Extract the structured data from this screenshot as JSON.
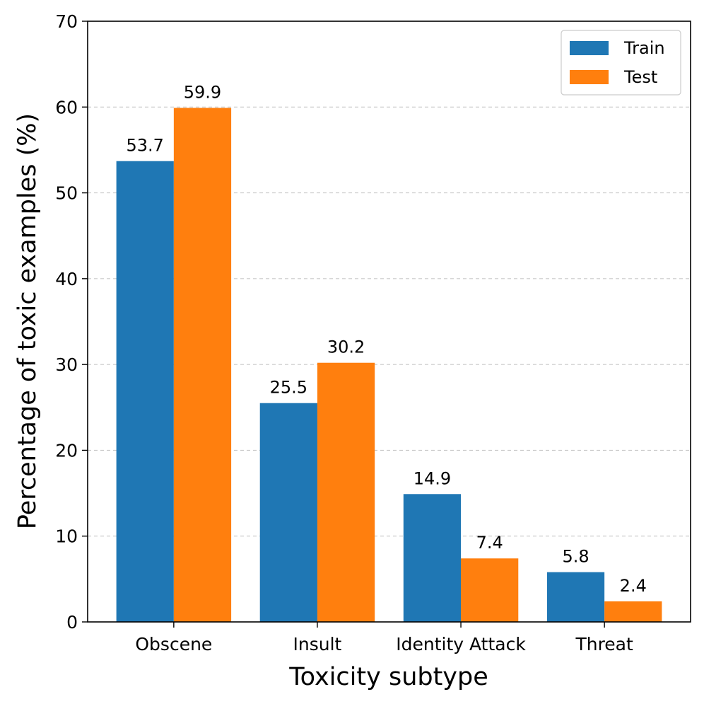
{
  "chart_data": {
    "type": "bar",
    "title": "",
    "xlabel": "Toxicity subtype",
    "ylabel": "Percentage of toxic examples (%)",
    "categories": [
      "Obscene",
      "Insult",
      "Identity Attack",
      "Threat"
    ],
    "series": [
      {
        "name": "Train",
        "values": [
          53.7,
          25.5,
          14.9,
          5.8
        ],
        "value_labels": [
          "53.7",
          "25.5",
          "14.9",
          "5.8"
        ],
        "color": "#1f77b4"
      },
      {
        "name": "Test",
        "values": [
          59.9,
          30.2,
          7.4,
          2.4
        ],
        "value_labels": [
          "59.9",
          "30.2",
          "7.4",
          "2.4"
        ],
        "color": "#ff7f0e"
      }
    ],
    "ylim": [
      0,
      70
    ],
    "yticks": [
      0,
      10,
      20,
      30,
      40,
      50,
      60,
      70
    ],
    "ytick_labels": [
      "0",
      "10",
      "20",
      "30",
      "40",
      "50",
      "60",
      "70"
    ],
    "grid": "y-dashed",
    "legend_position": "top-right"
  }
}
